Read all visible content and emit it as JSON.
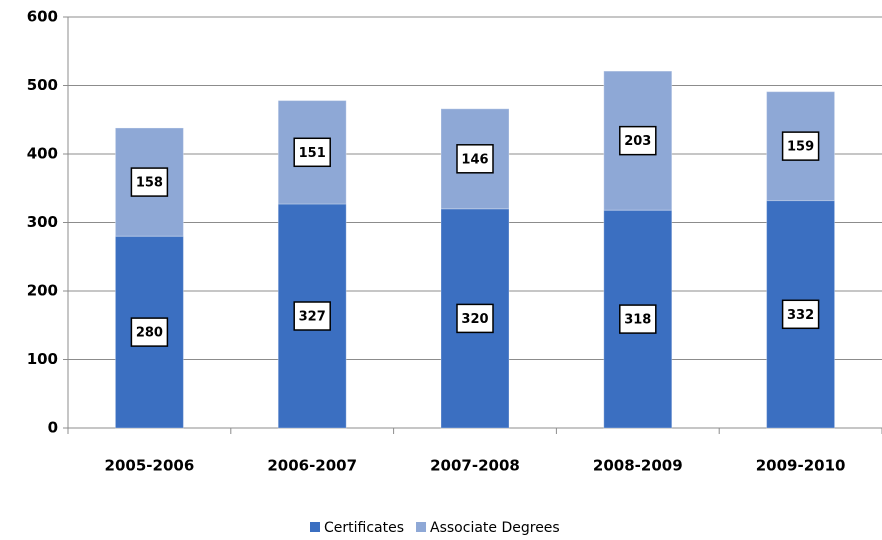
{
  "chart_data": {
    "type": "stacked_bar",
    "categories": [
      "2005-2006",
      "2006-2007",
      "2007-2008",
      "2008-2009",
      "2009-2010"
    ],
    "series": [
      {
        "name": "Certificates",
        "color": "#3b6fc1",
        "values": [
          280,
          327,
          320,
          318,
          332
        ]
      },
      {
        "name": "Associate Degrees",
        "color": "#8ea8d6",
        "values": [
          158,
          151,
          146,
          203,
          159
        ]
      }
    ],
    "ylim": [
      0,
      600
    ],
    "yticks": [
      0,
      100,
      200,
      300,
      400,
      500,
      600
    ],
    "grid": true,
    "legend": "bottom"
  }
}
